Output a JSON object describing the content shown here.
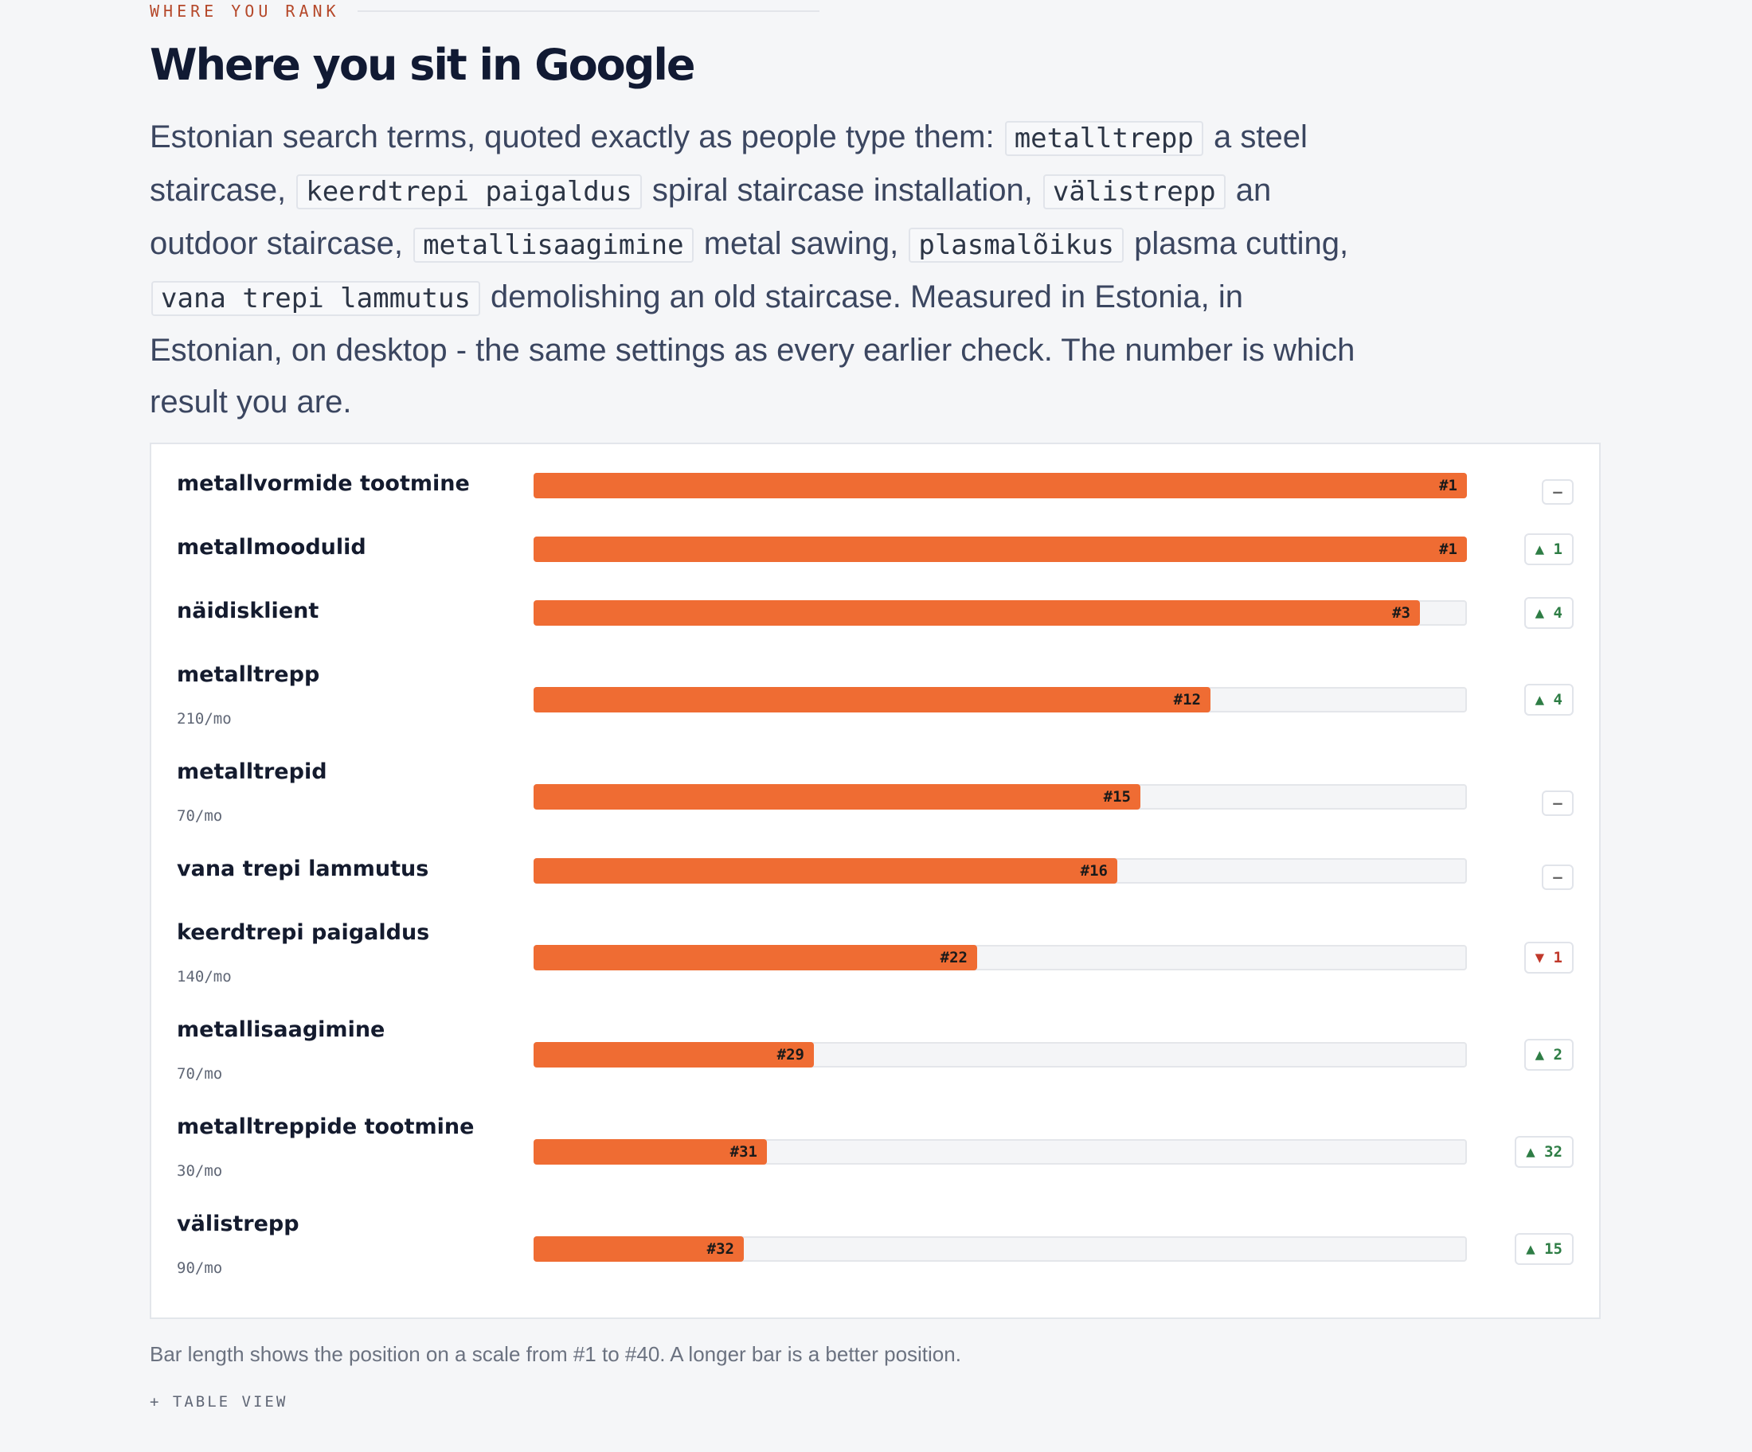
{
  "section": {
    "eyebrow": "WHERE YOU RANK",
    "title": "Where you sit in Google",
    "intro": [
      {
        "t": "Estonian search terms, quoted exactly as people type them: "
      },
      {
        "code": "metalltrepp"
      },
      {
        "t": " a steel staircase, "
      },
      {
        "code": "keerdtrepi paigaldus"
      },
      {
        "t": " spiral staircase installation, "
      },
      {
        "code": "välistrepp"
      },
      {
        "t": " an outdoor staircase, "
      },
      {
        "code": "metallisaagimine"
      },
      {
        "t": " metal sawing, "
      },
      {
        "code": "plasmalõikus"
      },
      {
        "t": " plasma cutting, "
      },
      {
        "code": "vana trepi lammutus"
      },
      {
        "t": " demolishing an old staircase. Measured in Estonia, in Estonian, on desktop - the same settings as every earlier check. The number is which result you are."
      }
    ]
  },
  "chart_data": {
    "type": "bar",
    "orientation": "horizontal",
    "scale": {
      "best": 1,
      "worst": 40
    },
    "colors": {
      "bar": "#ef6c33",
      "track": "#f4f5f7",
      "up": "#2e7d45",
      "down": "#c0392b"
    },
    "rows": [
      {
        "keyword": "metallvormide tootmine",
        "volume": "",
        "rank": 1,
        "rank_label": "#1",
        "delta_dir": "same",
        "delta_label": "–"
      },
      {
        "keyword": "metallmoodulid",
        "volume": "",
        "rank": 1,
        "rank_label": "#1",
        "delta_dir": "up",
        "delta_label": "▲ 1"
      },
      {
        "keyword": "näidisklient",
        "volume": "",
        "rank": 3,
        "rank_label": "#3",
        "delta_dir": "up",
        "delta_label": "▲ 4"
      },
      {
        "keyword": "metalltrepp",
        "volume": "210/mo",
        "rank": 12,
        "rank_label": "#12",
        "delta_dir": "up",
        "delta_label": "▲ 4"
      },
      {
        "keyword": "metalltrepid",
        "volume": "70/mo",
        "rank": 15,
        "rank_label": "#15",
        "delta_dir": "same",
        "delta_label": "–"
      },
      {
        "keyword": "vana trepi lammutus",
        "volume": "",
        "rank": 16,
        "rank_label": "#16",
        "delta_dir": "same",
        "delta_label": "–"
      },
      {
        "keyword": "keerdtrepi paigaldus",
        "volume": "140/mo",
        "rank": 22,
        "rank_label": "#22",
        "delta_dir": "down",
        "delta_label": "▼ 1"
      },
      {
        "keyword": "metallisaagimine",
        "volume": "70/mo",
        "rank": 29,
        "rank_label": "#29",
        "delta_dir": "up",
        "delta_label": "▲ 2"
      },
      {
        "keyword": "metalltreppide tootmine",
        "volume": "30/mo",
        "rank": 31,
        "rank_label": "#31",
        "delta_dir": "up",
        "delta_label": "▲ 32"
      },
      {
        "keyword": "välistrepp",
        "volume": "90/mo",
        "rank": 32,
        "rank_label": "#32",
        "delta_dir": "up",
        "delta_label": "▲ 15"
      }
    ]
  },
  "footer": {
    "note": "Bar length shows the position on a scale from #1 to #40. A longer bar is a better position.",
    "table_toggle": "+ TABLE VIEW"
  }
}
